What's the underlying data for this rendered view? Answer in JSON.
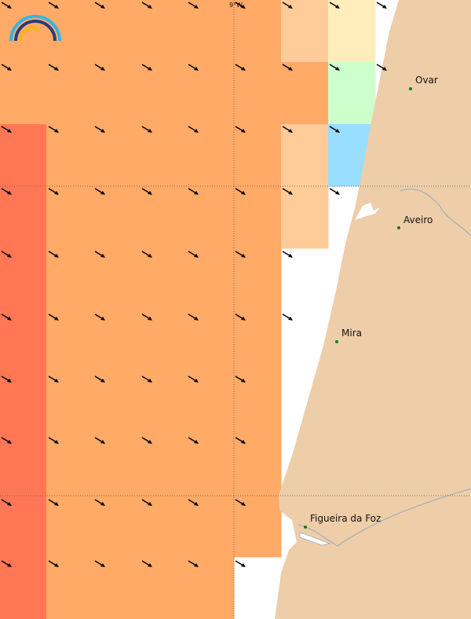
{
  "grid_label": "9°W",
  "places": [
    {
      "name": "Ovar"
    },
    {
      "name": "Aveiro"
    },
    {
      "name": "Mira"
    },
    {
      "name": "Figueira da Foz"
    }
  ]
}
